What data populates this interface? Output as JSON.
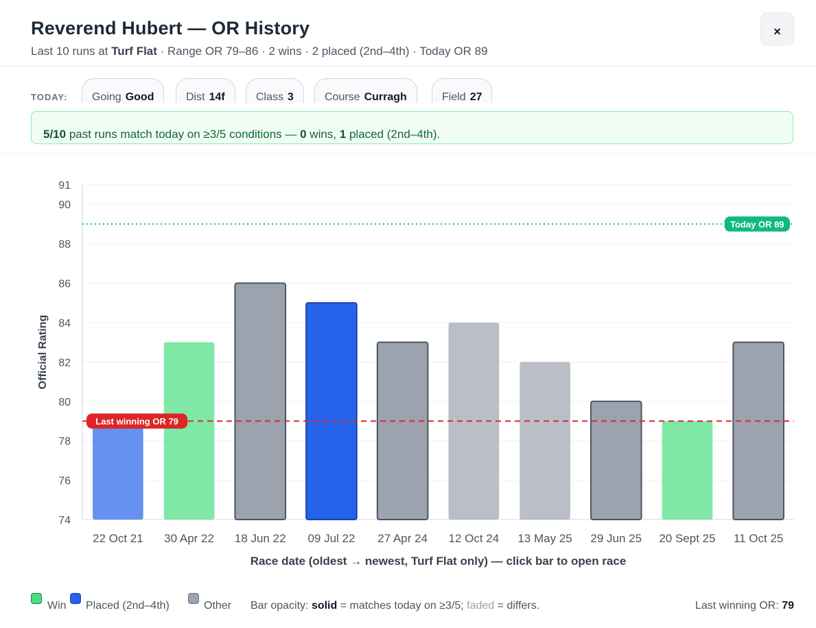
{
  "header": {
    "title": "Reverend Hubert — OR History",
    "sub_prefix": "Last 10 runs at ",
    "sub_surface": "Turf Flat",
    "sub_rest": " · Range OR 79–86 · 2 wins · 2 placed (2nd–4th) · Today OR 89",
    "close_label": "×"
  },
  "today": {
    "label": "TODAY:",
    "chips": [
      {
        "key": "Going",
        "value": "Good"
      },
      {
        "key": "Dist",
        "value": "14f"
      },
      {
        "key": "Class",
        "value": "3"
      },
      {
        "key": "Course",
        "value": "Curragh"
      },
      {
        "key": "Field",
        "value": "27"
      }
    ]
  },
  "match": {
    "count": "5/10",
    "text1": " past runs match today on ≥3/5 conditions — ",
    "wins": "0",
    "text2": " wins, ",
    "placed": "1",
    "text3": " placed (2nd–4th)."
  },
  "colors": {
    "win": "#4ade80",
    "placed": "#2563eb",
    "other": "#9ca3af",
    "today_line": "#10b981",
    "last_win_line": "#dc2626"
  },
  "chart_data": {
    "type": "bar",
    "categories": [
      "22 Oct 21",
      "30 Apr 22",
      "18 Jun 22",
      "09 Jul 22",
      "27 Apr 24",
      "12 Oct 24",
      "13 May 25",
      "29 Jun 25",
      "20 Sept 25",
      "11 Oct 25"
    ],
    "values": [
      79,
      83,
      86,
      85,
      83,
      84,
      82,
      80,
      79,
      83
    ],
    "results": [
      "placed",
      "win",
      "other",
      "placed",
      "other",
      "other",
      "other",
      "other",
      "win",
      "other"
    ],
    "matches_today": [
      false,
      false,
      true,
      true,
      true,
      false,
      false,
      true,
      false,
      true
    ],
    "ylabel": "Official Rating",
    "xlabel": "Race date (oldest → newest, Turf Flat only) — click bar to open race",
    "ylim": [
      74,
      91
    ],
    "yticks": [
      74,
      76,
      78,
      80,
      82,
      84,
      86,
      88,
      90,
      91
    ],
    "grid": true,
    "reference_lines": [
      {
        "value": 89,
        "label": "Today OR 89",
        "style": "dotted",
        "color": "#10b981"
      },
      {
        "value": 79,
        "label": "Last winning OR 79",
        "style": "dashed",
        "color": "#dc2626"
      }
    ]
  },
  "legend": {
    "win": "Win",
    "placed": "Placed (2nd–4th)",
    "other": "Other",
    "opacity_prefix": "Bar opacity: ",
    "solid": "solid",
    "solid_text": " = matches today on ≥3/5; ",
    "faded": "faded",
    "faded_text": " = differs.",
    "last_win_label": "Last winning OR: ",
    "last_win_value": "79"
  }
}
